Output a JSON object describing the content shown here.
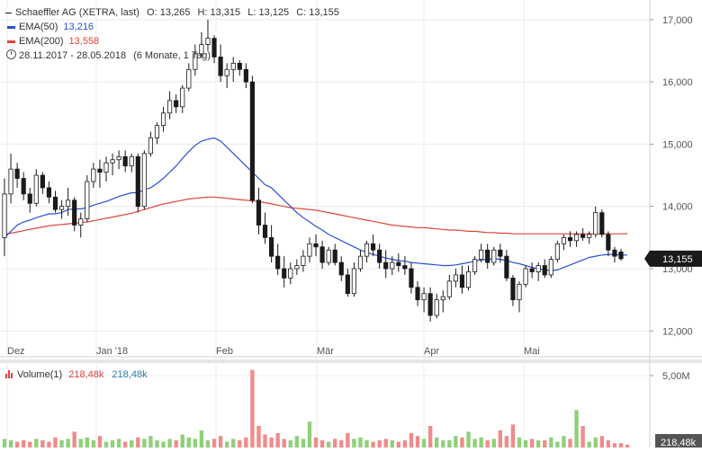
{
  "legend": {
    "instrument": "Schaeffler AG (XETRA, last)",
    "ohlc": [
      {
        "k": "O:",
        "v": "13,265"
      },
      {
        "k": "H:",
        "v": "13,315"
      },
      {
        "k": "L:",
        "v": "13,125"
      },
      {
        "k": "C:",
        "v": "13,155"
      }
    ],
    "ema50_label": "EMA(50)",
    "ema50_value": "13,216",
    "ema200_label": "EMA(200)",
    "ema200_value": "13,558",
    "range": "28.11.2017 - 28.05.2018",
    "range_note": "(6 Monate, 1 Tag)",
    "volume_label": "Volume(1)",
    "volume_value": "218,48k",
    "volume_value2": "218,48k"
  },
  "colors": {
    "up": "#3fae3f",
    "down": "#1a1a1a",
    "ema50": "#2a4fd6",
    "ema200": "#e0433a",
    "vol_up": "#8fd07a",
    "vol_down": "#ef8c8c",
    "badge": "#1a1a1a"
  },
  "chart_data": [
    {
      "type": "candlestick",
      "title": "Schaeffler AG (XETRA, last)",
      "x_tick_labels": [
        "Dez",
        "Jan '18",
        "Feb",
        "Mär",
        "Apr",
        "Mai"
      ],
      "y_tick_labels": [
        "17,000",
        "16,000",
        "15,000",
        "14,000",
        "13,000",
        "12,000"
      ],
      "ylim": [
        11.6,
        17.2
      ],
      "last_price_label": "13,155",
      "ohlc": [
        [
          13.5,
          14.45,
          13.2,
          14.2
        ],
        [
          14.2,
          14.85,
          14.05,
          14.6
        ],
        [
          14.6,
          14.7,
          14.3,
          14.45
        ],
        [
          14.45,
          14.55,
          14.1,
          14.2
        ],
        [
          14.2,
          14.3,
          13.9,
          14.05
        ],
        [
          14.05,
          14.6,
          14.0,
          14.5
        ],
        [
          14.5,
          14.55,
          14.2,
          14.3
        ],
        [
          14.3,
          14.4,
          14.05,
          14.15
        ],
        [
          14.15,
          14.25,
          13.9,
          13.95
        ],
        [
          13.95,
          14.1,
          13.8,
          14.0
        ],
        [
          14.0,
          14.3,
          13.85,
          14.1
        ],
        [
          14.1,
          14.15,
          13.6,
          13.7
        ],
        [
          13.7,
          13.9,
          13.5,
          13.8
        ],
        [
          13.8,
          14.5,
          13.75,
          14.4
        ],
        [
          14.4,
          14.7,
          14.3,
          14.6
        ],
        [
          14.6,
          14.75,
          14.3,
          14.55
        ],
        [
          14.55,
          14.8,
          14.4,
          14.7
        ],
        [
          14.7,
          14.85,
          14.5,
          14.75
        ],
        [
          14.75,
          14.9,
          14.6,
          14.8
        ],
        [
          14.8,
          14.9,
          14.55,
          14.65
        ],
        [
          14.65,
          14.85,
          14.55,
          14.8
        ],
        [
          14.8,
          14.85,
          13.9,
          14.0
        ],
        [
          14.0,
          14.9,
          13.95,
          14.85
        ],
        [
          14.85,
          15.2,
          14.8,
          15.1
        ],
        [
          15.1,
          15.35,
          15.0,
          15.3
        ],
        [
          15.3,
          15.6,
          15.2,
          15.5
        ],
        [
          15.5,
          15.85,
          15.4,
          15.7
        ],
        [
          15.7,
          15.8,
          15.5,
          15.6
        ],
        [
          15.6,
          15.95,
          15.5,
          15.9
        ],
        [
          15.9,
          16.3,
          15.85,
          16.2
        ],
        [
          16.2,
          16.6,
          16.1,
          16.45
        ],
        [
          16.45,
          16.8,
          16.4,
          16.6
        ],
        [
          16.6,
          17.0,
          16.5,
          16.7
        ],
        [
          16.7,
          16.75,
          16.3,
          16.4
        ],
        [
          16.4,
          16.6,
          16.0,
          16.1
        ],
        [
          16.1,
          16.3,
          15.9,
          16.2
        ],
        [
          16.2,
          16.4,
          16.0,
          16.3
        ],
        [
          16.3,
          16.35,
          16.1,
          16.2
        ],
        [
          16.2,
          16.3,
          15.9,
          16.0
        ],
        [
          16.0,
          16.1,
          14.05,
          14.1
        ],
        [
          14.1,
          14.3,
          13.55,
          13.7
        ],
        [
          13.7,
          13.9,
          13.4,
          13.5
        ],
        [
          13.5,
          13.7,
          13.1,
          13.2
        ],
        [
          13.2,
          13.4,
          12.9,
          13.0
        ],
        [
          13.0,
          13.2,
          12.7,
          12.85
        ],
        [
          12.85,
          13.1,
          12.75,
          13.0
        ],
        [
          13.0,
          13.15,
          12.9,
          13.05
        ],
        [
          13.05,
          13.3,
          12.95,
          13.2
        ],
        [
          13.2,
          13.5,
          13.1,
          13.4
        ],
        [
          13.4,
          13.55,
          13.2,
          13.35
        ],
        [
          13.35,
          13.45,
          13.0,
          13.1
        ],
        [
          13.1,
          13.35,
          13.05,
          13.3
        ],
        [
          13.3,
          13.4,
          13.05,
          13.1
        ],
        [
          13.1,
          13.2,
          12.8,
          12.9
        ],
        [
          12.9,
          13.0,
          12.55,
          12.6
        ],
        [
          12.6,
          13.1,
          12.55,
          13.0
        ],
        [
          13.0,
          13.3,
          12.95,
          13.2
        ],
        [
          13.2,
          13.45,
          13.1,
          13.4
        ],
        [
          13.4,
          13.55,
          13.2,
          13.3
        ],
        [
          13.3,
          13.4,
          13.0,
          13.1
        ],
        [
          13.1,
          13.3,
          12.85,
          13.0
        ],
        [
          13.0,
          13.2,
          12.9,
          13.1
        ],
        [
          13.1,
          13.25,
          12.95,
          13.05
        ],
        [
          13.05,
          13.2,
          12.9,
          13.0
        ],
        [
          13.0,
          13.1,
          12.6,
          12.7
        ],
        [
          12.7,
          12.8,
          12.4,
          12.5
        ],
        [
          12.5,
          12.7,
          12.3,
          12.6
        ],
        [
          12.6,
          12.7,
          12.15,
          12.25
        ],
        [
          12.25,
          12.6,
          12.2,
          12.5
        ],
        [
          12.5,
          12.65,
          12.3,
          12.55
        ],
        [
          12.55,
          12.9,
          12.5,
          12.8
        ],
        [
          12.8,
          13.0,
          12.7,
          12.9
        ],
        [
          12.9,
          13.05,
          12.6,
          12.7
        ],
        [
          12.7,
          13.05,
          12.65,
          12.95
        ],
        [
          12.95,
          13.2,
          12.9,
          13.15
        ],
        [
          13.15,
          13.4,
          13.1,
          13.3
        ],
        [
          13.3,
          13.4,
          13.0,
          13.1
        ],
        [
          13.1,
          13.35,
          13.05,
          13.3
        ],
        [
          13.3,
          13.4,
          13.1,
          13.2
        ],
        [
          13.2,
          13.3,
          12.8,
          12.85
        ],
        [
          12.85,
          12.9,
          12.4,
          12.5
        ],
        [
          12.5,
          12.8,
          12.3,
          12.75
        ],
        [
          12.75,
          13.05,
          12.7,
          13.0
        ],
        [
          13.0,
          13.1,
          12.85,
          12.95
        ],
        [
          12.95,
          13.1,
          12.8,
          13.05
        ],
        [
          13.05,
          13.15,
          12.85,
          12.9
        ],
        [
          12.9,
          13.2,
          12.85,
          13.15
        ],
        [
          13.15,
          13.45,
          13.1,
          13.4
        ],
        [
          13.4,
          13.55,
          13.3,
          13.5
        ],
        [
          13.5,
          13.6,
          13.35,
          13.45
        ],
        [
          13.45,
          13.6,
          13.35,
          13.55
        ],
        [
          13.55,
          13.65,
          13.45,
          13.5
        ],
        [
          13.5,
          13.6,
          13.4,
          13.55
        ],
        [
          13.55,
          14.0,
          13.5,
          13.9
        ],
        [
          13.9,
          13.95,
          13.5,
          13.55
        ],
        [
          13.55,
          13.6,
          13.2,
          13.3
        ],
        [
          13.3,
          13.35,
          13.1,
          13.2
        ],
        [
          13.27,
          13.32,
          13.13,
          13.16
        ]
      ],
      "ema50": [
        13.5,
        13.6,
        13.7,
        13.75,
        13.78,
        13.82,
        13.85,
        13.88,
        13.88,
        13.9,
        13.95,
        13.96,
        13.96,
        13.98,
        14.02,
        14.05,
        14.08,
        14.12,
        14.16,
        14.19,
        14.22,
        14.22,
        14.27,
        14.3,
        14.37,
        14.45,
        14.55,
        14.65,
        14.77,
        14.88,
        14.98,
        15.05,
        15.08,
        15.1,
        15.05,
        14.95,
        14.85,
        14.75,
        14.65,
        14.55,
        14.45,
        14.35,
        14.3,
        14.2,
        14.1,
        14.0,
        13.9,
        13.82,
        13.75,
        13.68,
        13.62,
        13.55,
        13.5,
        13.45,
        13.4,
        13.35,
        13.3,
        13.26,
        13.23,
        13.2,
        13.17,
        13.15,
        13.13,
        13.12,
        13.1,
        13.09,
        13.08,
        13.07,
        13.06,
        13.05,
        13.05,
        13.06,
        13.08,
        13.1,
        13.12,
        13.14,
        13.15,
        13.16,
        13.15,
        13.13,
        13.1,
        13.08,
        13.05,
        13.02,
        13.0,
        12.98,
        12.97,
        12.98,
        13.02,
        13.06,
        13.1,
        13.14,
        13.18,
        13.2,
        13.22,
        13.23,
        13.23,
        13.22,
        13.22
      ],
      "ema200": [
        13.55,
        13.57,
        13.59,
        13.61,
        13.63,
        13.65,
        13.67,
        13.69,
        13.7,
        13.71,
        13.72,
        13.73,
        13.74,
        13.75,
        13.77,
        13.79,
        13.81,
        13.83,
        13.85,
        13.87,
        13.89,
        13.92,
        13.95,
        13.98,
        14.01,
        14.04,
        14.06,
        14.08,
        14.1,
        14.12,
        14.13,
        14.14,
        14.15,
        14.15,
        14.14,
        14.13,
        14.12,
        14.11,
        14.1,
        14.09,
        14.08,
        14.06,
        14.04,
        14.02,
        14.0,
        13.98,
        13.97,
        13.96,
        13.95,
        13.94,
        13.92,
        13.9,
        13.88,
        13.86,
        13.84,
        13.82,
        13.8,
        13.78,
        13.76,
        13.74,
        13.72,
        13.7,
        13.69,
        13.68,
        13.67,
        13.66,
        13.66,
        13.65,
        13.64,
        13.63,
        13.62,
        13.62,
        13.61,
        13.6,
        13.6,
        13.59,
        13.58,
        13.58,
        13.57,
        13.57,
        13.56,
        13.56,
        13.56,
        13.56,
        13.56,
        13.56,
        13.56,
        13.56,
        13.56,
        13.56,
        13.56,
        13.56,
        13.56,
        13.56,
        13.56,
        13.56,
        13.56,
        13.56,
        13.56
      ]
    },
    {
      "type": "bar",
      "title": "Volume(1)",
      "y_tick_labels": [
        "5,00M"
      ],
      "ylim": [
        0,
        6.0
      ],
      "last_value_label": "218,48k",
      "values": [
        0.6,
        0.5,
        0.4,
        0.5,
        0.4,
        0.6,
        0.5,
        0.4,
        0.7,
        0.5,
        0.6,
        1.1,
        0.6,
        0.7,
        0.5,
        0.8,
        0.4,
        0.5,
        0.6,
        0.4,
        0.5,
        0.7,
        0.6,
        0.8,
        0.5,
        0.4,
        0.6,
        0.5,
        0.9,
        0.7,
        0.6,
        1.2,
        0.5,
        0.6,
        0.8,
        0.4,
        0.6,
        0.5,
        0.7,
        5.4,
        1.5,
        0.9,
        0.7,
        1.0,
        0.6,
        0.5,
        0.8,
        0.6,
        1.8,
        0.7,
        0.5,
        0.4,
        0.6,
        0.5,
        1.0,
        0.6,
        0.7,
        0.5,
        0.4,
        0.5,
        0.6,
        0.5,
        0.4,
        0.5,
        1.0,
        0.8,
        0.6,
        1.5,
        0.7,
        0.5,
        0.5,
        0.8,
        0.7,
        1.1,
        0.6,
        0.7,
        0.5,
        0.6,
        1.2,
        0.8,
        1.6,
        0.7,
        0.5,
        0.6,
        0.5,
        0.5,
        0.7,
        0.4,
        0.8,
        0.6,
        2.6,
        1.5,
        0.4,
        0.7,
        0.8,
        0.5,
        0.3,
        0.3,
        0.2
      ]
    }
  ]
}
